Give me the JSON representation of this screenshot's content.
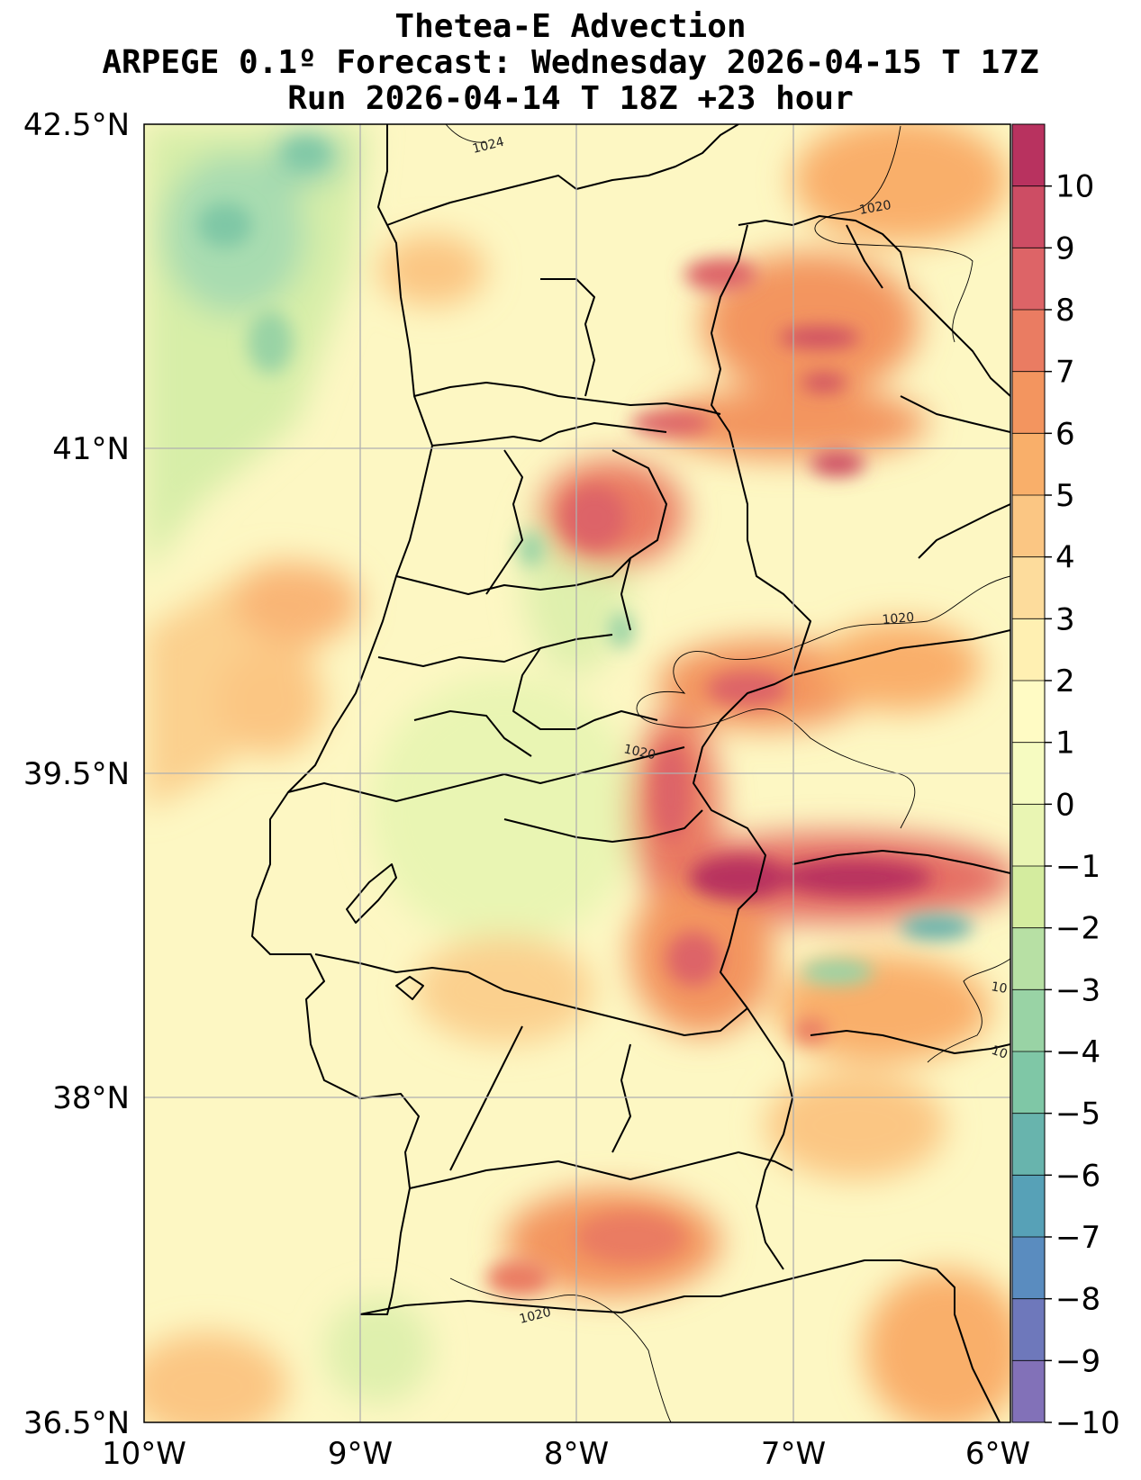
{
  "title": {
    "line1": "Thetea-E Advection",
    "line2": "ARPEGE 0.1º Forecast: Wednesday 2026-04-15 T 17Z",
    "line3": "Run 2026-04-14 T 18Z +23 hour"
  },
  "map": {
    "lon_labels": [
      "10°W",
      "9°W",
      "8°W",
      "7°W",
      "6°W"
    ],
    "lat_labels": [
      "42.5°N",
      "41°N",
      "39.5°N",
      "38°N",
      "36.5°N"
    ],
    "isobar_labels": [
      "1024",
      "1020",
      "1020",
      "1020",
      "1020",
      "10",
      "10"
    ]
  },
  "colorbar": {
    "ticks": [
      "10",
      "9",
      "8",
      "7",
      "6",
      "5",
      "4",
      "3",
      "2",
      "1",
      "0",
      "−1",
      "−2",
      "−3",
      "−4",
      "−5",
      "−6",
      "−7",
      "−8",
      "−9",
      "−10"
    ],
    "colors": [
      "#b8325f",
      "#cd4d64",
      "#dd6467",
      "#ea7c62",
      "#f3955f",
      "#f9af6a",
      "#fbc683",
      "#fddc9c",
      "#fff0b2",
      "#fffbc4",
      "#f6fbc1",
      "#e9f5b3",
      "#d4ec9f",
      "#b7e0a4",
      "#99d3a5",
      "#7fc7a6",
      "#68b4ad",
      "#57a1b7",
      "#5a8cbf",
      "#6e78bb",
      "#8271b8"
    ]
  }
}
